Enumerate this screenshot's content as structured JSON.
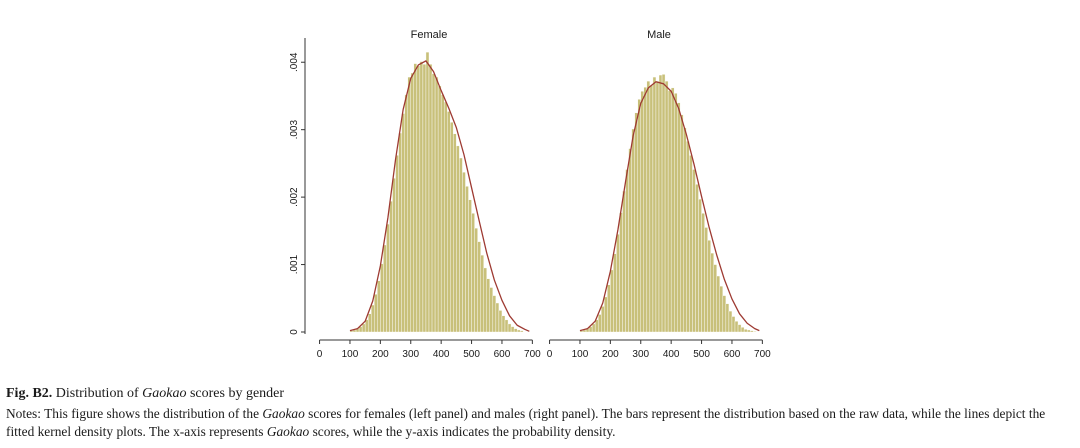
{
  "chart_data": {
    "type": "histogram",
    "y_axis": {
      "ticks": [
        "0",
        ".001",
        ".002",
        ".003",
        ".004"
      ],
      "tick_values": [
        0,
        0.001,
        0.002,
        0.003,
        0.004
      ],
      "ylim": [
        0,
        0.0043
      ]
    },
    "x_axis": {
      "ticks": [
        "0",
        "100",
        "200",
        "300",
        "400",
        "500",
        "600",
        "700"
      ],
      "tick_values": [
        0,
        100,
        200,
        300,
        400,
        500,
        600,
        700
      ],
      "xlim": [
        -15,
        735
      ]
    },
    "bin_width": 10,
    "colors": {
      "bars": "#c8c07a",
      "bar_edge": "#ffffff",
      "density_line": "#9e3a32",
      "axis": "#333333"
    },
    "panels": [
      {
        "title": "Female",
        "bin_starts": [
          100,
          110,
          120,
          130,
          140,
          150,
          160,
          170,
          180,
          190,
          200,
          210,
          220,
          230,
          240,
          250,
          260,
          270,
          280,
          290,
          300,
          310,
          320,
          330,
          340,
          350,
          360,
          370,
          380,
          390,
          400,
          410,
          420,
          430,
          440,
          450,
          460,
          470,
          480,
          490,
          500,
          510,
          520,
          530,
          540,
          550,
          560,
          570,
          580,
          590,
          600,
          610,
          620,
          630,
          640,
          650,
          660
        ],
        "histogram": [
          2e-05,
          3e-05,
          5e-05,
          8e-05,
          0.00012,
          0.00018,
          0.00027,
          0.0004,
          0.00056,
          0.00076,
          0.00101,
          0.00129,
          0.0016,
          0.00194,
          0.00228,
          0.00262,
          0.00295,
          0.00324,
          0.00352,
          0.00378,
          0.00384,
          0.00398,
          0.00395,
          0.00401,
          0.00397,
          0.00415,
          0.00397,
          0.00383,
          0.00378,
          0.00365,
          0.00352,
          0.00341,
          0.00327,
          0.00311,
          0.00294,
          0.00276,
          0.00258,
          0.00237,
          0.00216,
          0.00196,
          0.00176,
          0.00154,
          0.00134,
          0.00114,
          0.00095,
          0.00079,
          0.00066,
          0.00054,
          0.00043,
          0.00032,
          0.00024,
          0.00018,
          0.00012,
          8e-05,
          5e-05,
          3e-05,
          2e-05
        ],
        "density_x": [
          100,
          125,
          150,
          175,
          200,
          225,
          250,
          275,
          300,
          325,
          350,
          375,
          400,
          425,
          450,
          475,
          500,
          525,
          550,
          575,
          600,
          625,
          650,
          675,
          690
        ],
        "density_y": [
          2e-05,
          5e-05,
          0.00016,
          0.00046,
          0.00098,
          0.0017,
          0.00256,
          0.0033,
          0.00376,
          0.00396,
          0.00402,
          0.00386,
          0.00358,
          0.00332,
          0.00303,
          0.00263,
          0.00214,
          0.00165,
          0.00117,
          0.00077,
          0.00047,
          0.00024,
          0.0001,
          4e-05,
          1e-05
        ]
      },
      {
        "title": "Male",
        "bin_starts": [
          100,
          110,
          120,
          130,
          140,
          150,
          160,
          170,
          180,
          190,
          200,
          210,
          220,
          230,
          240,
          250,
          260,
          270,
          280,
          290,
          300,
          310,
          320,
          330,
          340,
          350,
          360,
          370,
          380,
          390,
          400,
          410,
          420,
          430,
          440,
          450,
          460,
          470,
          480,
          490,
          500,
          510,
          520,
          530,
          540,
          550,
          560,
          570,
          580,
          590,
          600,
          610,
          620,
          630,
          640,
          650,
          660,
          670
        ],
        "histogram": [
          2e-05,
          3e-05,
          5e-05,
          8e-05,
          0.00012,
          0.00018,
          0.00026,
          0.00038,
          0.00052,
          0.0007,
          0.00092,
          0.00116,
          0.00145,
          0.00177,
          0.00209,
          0.00241,
          0.00272,
          0.00301,
          0.00325,
          0.00345,
          0.00357,
          0.00363,
          0.00372,
          0.00366,
          0.00378,
          0.00372,
          0.00381,
          0.00382,
          0.00372,
          0.00358,
          0.00362,
          0.00354,
          0.0034,
          0.00322,
          0.00303,
          0.00283,
          0.00262,
          0.00241,
          0.00219,
          0.00197,
          0.00176,
          0.00155,
          0.00136,
          0.00117,
          0.001,
          0.00083,
          0.00068,
          0.00054,
          0.00042,
          0.00031,
          0.00023,
          0.00016,
          0.00011,
          7e-05,
          4e-05,
          3e-05,
          2e-05,
          1e-05
        ],
        "density_x": [
          100,
          125,
          150,
          175,
          200,
          225,
          250,
          275,
          300,
          325,
          350,
          375,
          400,
          425,
          450,
          475,
          500,
          525,
          550,
          575,
          600,
          625,
          650,
          675,
          690
        ],
        "density_y": [
          2e-05,
          5e-05,
          0.00016,
          0.00043,
          0.0009,
          0.00152,
          0.00223,
          0.00291,
          0.00339,
          0.00362,
          0.00371,
          0.00368,
          0.00357,
          0.00331,
          0.00293,
          0.00249,
          0.00201,
          0.00155,
          0.00114,
          0.00078,
          0.00049,
          0.00027,
          0.00013,
          5e-05,
          2e-05
        ]
      }
    ]
  },
  "caption": {
    "fig_label": "Fig. B2.",
    "title_before": " Distribution of ",
    "title_em": "Gaokao",
    "title_after": " scores by gender",
    "notes_1": "Notes: This figure shows the distribution of the ",
    "notes_em_1": "Gaokao",
    "notes_2": " scores for females (left panel) and males (right panel). The bars represent the distribution based on the raw data, while the lines depict the fitted kernel density plots. The x-axis represents ",
    "notes_em_2": "Gaokao",
    "notes_3": " scores, while the y-axis indicates the probability density."
  }
}
